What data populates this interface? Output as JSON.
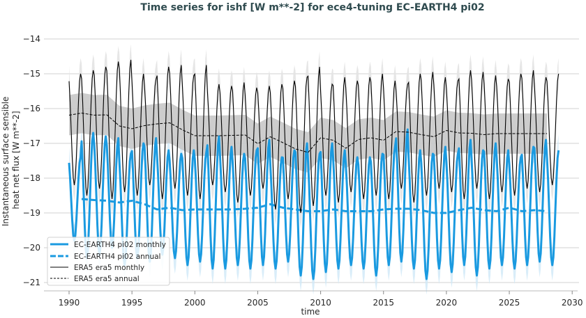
{
  "chart_data": {
    "type": "line",
    "title": "Time series for ishf [W m**-2] for ece4-tuning EC-EARTH4 pi02",
    "xlabel": "time",
    "ylabel": [
      "Instantaneous surface sensible",
      "heat net flux [W m**-2]"
    ],
    "xlim": [
      1988.5,
      2030.5
    ],
    "ylim": [
      -21.2,
      -13.8
    ],
    "xticks": [
      1990,
      1995,
      2000,
      2005,
      2010,
      2015,
      2020,
      2025,
      2030
    ],
    "yticks": [
      -14,
      -15,
      -16,
      -17,
      -18,
      -19,
      -20,
      -21
    ],
    "ytick_labels": [
      "−14",
      "−15",
      "−16",
      "−17",
      "−18",
      "−19",
      "−20",
      "−21"
    ],
    "grid": "horizontal",
    "legend_position": "lower-left",
    "legend": [
      "EC-EARTH4 pi02 monthly",
      "EC-EARTH4 pi02 annual",
      "ERA5 era5 monthly",
      "ERA5 era5 annual"
    ],
    "colors": {
      "ec_earth": "#1a9ae0",
      "ec_earth_band": "#cfe8f7",
      "era5": "#000000",
      "era5_band": "#c8c8c8",
      "monthly_band": "#e3e3e3"
    },
    "series": [
      {
        "name": "EC-EARTH4 pi02 monthly",
        "style": "solid-thick",
        "years": [
          1990,
          2028
        ],
        "seasonal_peak_month": "January",
        "annual_max": [
          -17.4,
          -16.7,
          -16.8,
          -16.85,
          -17.3,
          -17.0,
          -16.85,
          -17.2,
          -17.3,
          -17.2,
          -17.25,
          -16.8,
          -17.1,
          -17.3,
          -17.2,
          -16.9,
          -17.4,
          -17.2,
          -17.0,
          -17.3,
          -17.0,
          -17.2,
          -17.4,
          -17.4,
          -17.3,
          -17.1,
          -16.6,
          -17.2,
          -17.3,
          -17.1,
          -17.3,
          -16.9,
          -17.2,
          -17.0,
          -17.2,
          -17.4,
          -17.1,
          -16.9,
          -17.2
        ],
        "annual_min": [
          -19.8,
          -20.3,
          -20.2,
          -20.0,
          -20.5,
          -20.3,
          -20.4,
          -20.2,
          -20.3,
          -20.5,
          -20.4,
          -20.6,
          -20.6,
          -20.5,
          -20.6,
          -20.5,
          -20.6,
          -20.4,
          -20.8,
          -20.9,
          -20.7,
          -20.6,
          -20.5,
          -20.6,
          -20.8,
          -20.5,
          -20.4,
          -20.6,
          -20.9,
          -20.6,
          -20.7,
          -20.5,
          -20.8,
          -20.6,
          -20.5,
          -20.6,
          -20.5,
          -20.4,
          -20.5
        ],
        "spread": 0.45
      },
      {
        "name": "EC-EARTH4 pi02 annual",
        "style": "dashed-thick",
        "x": [
          1991,
          1992,
          1993,
          1994,
          1995,
          1996,
          1997,
          1998,
          1999,
          2000,
          2001,
          2002,
          2003,
          2004,
          2005,
          2006,
          2007,
          2008,
          2009,
          2010,
          2011,
          2012,
          2013,
          2014,
          2015,
          2016,
          2017,
          2018,
          2019,
          2020,
          2021,
          2022,
          2023,
          2024,
          2025,
          2026,
          2027,
          2028
        ],
        "values": [
          -18.6,
          -18.63,
          -18.65,
          -18.7,
          -18.65,
          -18.75,
          -18.9,
          -18.85,
          -18.92,
          -18.9,
          -18.9,
          -18.9,
          -18.9,
          -18.88,
          -18.85,
          -18.75,
          -18.85,
          -18.9,
          -18.95,
          -18.95,
          -18.9,
          -18.95,
          -18.95,
          -18.95,
          -18.9,
          -18.88,
          -18.88,
          -18.92,
          -19.0,
          -19.0,
          -18.92,
          -18.85,
          -18.92,
          -18.95,
          -18.85,
          -18.95,
          -18.92,
          -18.95
        ]
      },
      {
        "name": "ERA5 era5 monthly",
        "style": "solid-thin",
        "years": [
          1990,
          2028
        ],
        "seasonal_peak_month": "January",
        "annual_max": [
          -15.0,
          -14.9,
          -14.8,
          -14.65,
          -14.6,
          -15.0,
          -15.15,
          -14.8,
          -14.75,
          -15.05,
          -14.75,
          -15.3,
          -15.35,
          -15.25,
          -15.4,
          -15.35,
          -15.3,
          -15.2,
          -15.1,
          -14.8,
          -15.3,
          -15.1,
          -15.2,
          -15.1,
          -15.0,
          -15.2,
          -15.3,
          -15.0,
          -14.95,
          -15.1,
          -15.2,
          -14.9,
          -14.95,
          -15.05,
          -15.15,
          -15.0,
          -14.9,
          -15.1,
          -15.0
        ],
        "annual_min": [
          -18.2,
          -18.5,
          -18.3,
          -18.6,
          -18.4,
          -18.5,
          -18.2,
          -18.6,
          -18.3,
          -18.5,
          -18.6,
          -18.2,
          -18.4,
          -18.7,
          -18.5,
          -18.3,
          -18.9,
          -18.6,
          -19.0,
          -18.8,
          -18.5,
          -18.7,
          -18.4,
          -18.6,
          -18.5,
          -18.6,
          -18.3,
          -18.7,
          -18.5,
          -18.3,
          -18.4,
          -18.6,
          -18.3,
          -18.6,
          -18.4,
          -18.5,
          -18.3,
          -18.4,
          -18.2
        ],
        "spread": 0.45
      },
      {
        "name": "ERA5 era5 annual",
        "style": "dashed-thin",
        "x": [
          1990,
          1991,
          1992,
          1993,
          1994,
          1995,
          1996,
          1997,
          1998,
          1999,
          2000,
          2001,
          2002,
          2003,
          2004,
          2005,
          2006,
          2007,
          2008,
          2009,
          2010,
          2011,
          2012,
          2013,
          2014,
          2015,
          2016,
          2017,
          2018,
          2019,
          2020,
          2021,
          2022,
          2023,
          2024,
          2025,
          2026,
          2027,
          2028
        ],
        "values": [
          -16.19,
          -16.13,
          -16.19,
          -16.18,
          -16.5,
          -16.58,
          -16.49,
          -16.44,
          -16.41,
          -16.61,
          -16.78,
          -16.78,
          -16.78,
          -16.77,
          -16.76,
          -17.01,
          -16.81,
          -16.98,
          -17.16,
          -17.26,
          -16.84,
          -16.91,
          -17.14,
          -16.89,
          -16.84,
          -16.91,
          -16.66,
          -16.68,
          -16.75,
          -16.81,
          -16.63,
          -16.7,
          -16.71,
          -16.75,
          -16.72,
          -16.72,
          -16.72,
          -16.72,
          -16.72
        ],
        "spread": 0.58
      }
    ]
  }
}
